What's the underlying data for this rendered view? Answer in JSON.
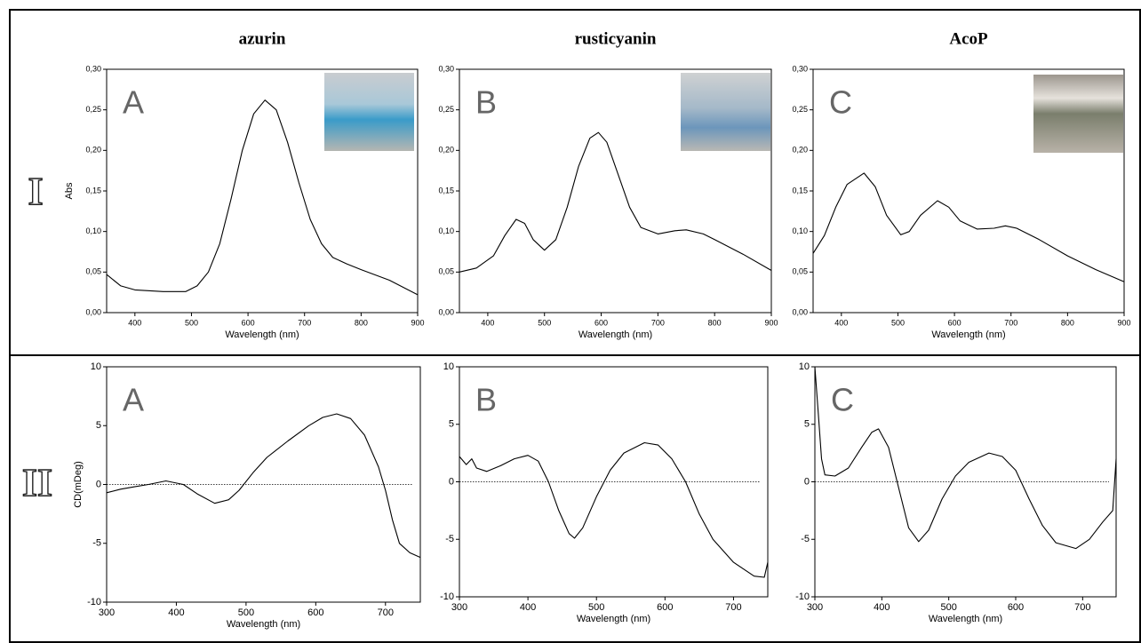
{
  "figure": {
    "row_labels": [
      "I",
      "II"
    ]
  },
  "chart_data": [
    {
      "type": "line",
      "title": "azurin",
      "panel_label": "A",
      "x_label": "Wavelength (nm)",
      "y_label": "Abs",
      "color": "#000000",
      "x": [
        350,
        375,
        400,
        450,
        490,
        510,
        530,
        550,
        570,
        590,
        610,
        630,
        650,
        670,
        690,
        710,
        730,
        750,
        775,
        800,
        850,
        900
      ],
      "values": [
        0.047,
        0.033,
        0.028,
        0.026,
        0.026,
        0.033,
        0.05,
        0.085,
        0.14,
        0.2,
        0.245,
        0.262,
        0.25,
        0.21,
        0.16,
        0.115,
        0.085,
        0.068,
        0.06,
        0.053,
        0.04,
        0.022
      ],
      "xlim": [
        350,
        900
      ],
      "xticks": [
        400,
        500,
        600,
        700,
        800,
        900
      ],
      "ylim": [
        0,
        0.3
      ],
      "yticks": [
        {
          "value": 0,
          "label": "0,00"
        },
        {
          "value": 0.05,
          "label": "0,05"
        },
        {
          "value": 0.1,
          "label": "0,10"
        },
        {
          "value": 0.15,
          "label": "0,15"
        },
        {
          "value": 0.2,
          "label": "0,20"
        },
        {
          "value": 0.25,
          "label": "0,25"
        },
        {
          "value": 0.3,
          "label": "0,30"
        }
      ]
    },
    {
      "type": "line",
      "title": "rusticyanin",
      "panel_label": "B",
      "x_label": "Wavelength (nm)",
      "color": "#000000",
      "x": [
        350,
        380,
        410,
        430,
        450,
        465,
        480,
        500,
        520,
        540,
        560,
        580,
        595,
        610,
        630,
        650,
        670,
        700,
        730,
        750,
        780,
        800,
        850,
        900
      ],
      "values": [
        0.05,
        0.055,
        0.07,
        0.095,
        0.115,
        0.11,
        0.09,
        0.077,
        0.09,
        0.13,
        0.18,
        0.215,
        0.222,
        0.21,
        0.17,
        0.13,
        0.105,
        0.097,
        0.101,
        0.102,
        0.097,
        0.09,
        0.072,
        0.052
      ],
      "xlim": [
        350,
        900
      ],
      "xticks": [
        400,
        500,
        600,
        700,
        800,
        900
      ],
      "ylim": [
        0,
        0.3
      ],
      "yticks": [
        {
          "value": 0,
          "label": "0,00"
        },
        {
          "value": 0.05,
          "label": "0,05"
        },
        {
          "value": 0.1,
          "label": "0,10"
        },
        {
          "value": 0.15,
          "label": "0,15"
        },
        {
          "value": 0.2,
          "label": "0,20"
        },
        {
          "value": 0.25,
          "label": "0,25"
        },
        {
          "value": 0.3,
          "label": "0,30"
        }
      ]
    },
    {
      "type": "line",
      "title": "AcoP",
      "panel_label": "C",
      "x_label": "Wavelength (nm)",
      "color": "#000000",
      "x": [
        350,
        370,
        390,
        410,
        440,
        460,
        480,
        505,
        520,
        540,
        570,
        590,
        610,
        640,
        670,
        690,
        710,
        750,
        800,
        850,
        900
      ],
      "values": [
        0.073,
        0.095,
        0.13,
        0.158,
        0.172,
        0.155,
        0.12,
        0.096,
        0.1,
        0.12,
        0.138,
        0.13,
        0.113,
        0.103,
        0.104,
        0.107,
        0.104,
        0.09,
        0.07,
        0.053,
        0.038
      ],
      "xlim": [
        350,
        900
      ],
      "xticks": [
        400,
        500,
        600,
        700,
        800,
        900
      ],
      "ylim": [
        0,
        0.3
      ],
      "yticks": [
        {
          "value": 0,
          "label": "0,00"
        },
        {
          "value": 0.05,
          "label": "0,05"
        },
        {
          "value": 0.1,
          "label": "0,10"
        },
        {
          "value": 0.15,
          "label": "0,15"
        },
        {
          "value": 0.2,
          "label": "0,20"
        },
        {
          "value": 0.25,
          "label": "0,25"
        },
        {
          "value": 0.3,
          "label": "0,30"
        }
      ]
    },
    {
      "type": "line",
      "panel_label": "A",
      "x_label": "Wavelength (nm)",
      "y_label": "CD(mDeg)",
      "color": "#000000",
      "hline": 0,
      "x": [
        300,
        320,
        340,
        360,
        385,
        410,
        430,
        455,
        475,
        490,
        510,
        530,
        560,
        590,
        610,
        630,
        650,
        670,
        690,
        700,
        710,
        720,
        735,
        750
      ],
      "values": [
        -0.7,
        -0.4,
        -0.2,
        0,
        0.3,
        0,
        -0.8,
        -1.6,
        -1.3,
        -0.5,
        1,
        2.3,
        3.7,
        5,
        5.7,
        6,
        5.6,
        4.2,
        1.5,
        -0.5,
        -3,
        -5,
        -5.8,
        -6.2
      ],
      "xlim": [
        300,
        750
      ],
      "xticks": [
        300,
        400,
        500,
        600,
        700
      ],
      "ylim": [
        -10,
        10
      ],
      "yticks": [
        -10,
        -5,
        0,
        5,
        10
      ]
    },
    {
      "type": "line",
      "panel_label": "B",
      "x_label": "Wavelength (nm)",
      "color": "#000000",
      "hline": 0,
      "x": [
        300,
        310,
        318,
        325,
        340,
        360,
        380,
        400,
        415,
        430,
        445,
        460,
        468,
        480,
        500,
        520,
        540,
        570,
        590,
        610,
        630,
        650,
        670,
        700,
        730,
        745,
        750
      ],
      "values": [
        2.2,
        1.5,
        2,
        1.2,
        0.9,
        1.4,
        2,
        2.3,
        1.8,
        0,
        -2.5,
        -4.5,
        -4.9,
        -4,
        -1.3,
        1,
        2.5,
        3.4,
        3.2,
        2,
        0,
        -2.8,
        -5,
        -7,
        -8.2,
        -8.3,
        -7
      ],
      "xlim": [
        300,
        750
      ],
      "xticks": [
        300,
        400,
        500,
        600,
        700
      ],
      "ylim": [
        -10,
        10
      ],
      "yticks": [
        -10,
        -5,
        0,
        5,
        10
      ]
    },
    {
      "type": "line",
      "panel_label": "C",
      "x_label": "Wavelength (nm)",
      "color": "#000000",
      "hline": 0,
      "x": [
        300,
        305,
        310,
        315,
        330,
        350,
        370,
        385,
        395,
        410,
        425,
        440,
        455,
        470,
        490,
        510,
        530,
        560,
        580,
        600,
        620,
        640,
        660,
        690,
        710,
        730,
        745,
        750
      ],
      "values": [
        10,
        6,
        2,
        0.6,
        0.5,
        1.2,
        3,
        4.3,
        4.6,
        3,
        -0.5,
        -4,
        -5.2,
        -4.2,
        -1.5,
        0.5,
        1.7,
        2.5,
        2.2,
        1,
        -1.5,
        -3.8,
        -5.3,
        -5.8,
        -5,
        -3.5,
        -2.5,
        2
      ],
      "xlim": [
        300,
        750
      ],
      "xticks": [
        300,
        400,
        500,
        600,
        700
      ],
      "ylim": [
        -10,
        10
      ],
      "yticks": [
        -10,
        -5,
        0,
        5,
        10
      ]
    }
  ]
}
